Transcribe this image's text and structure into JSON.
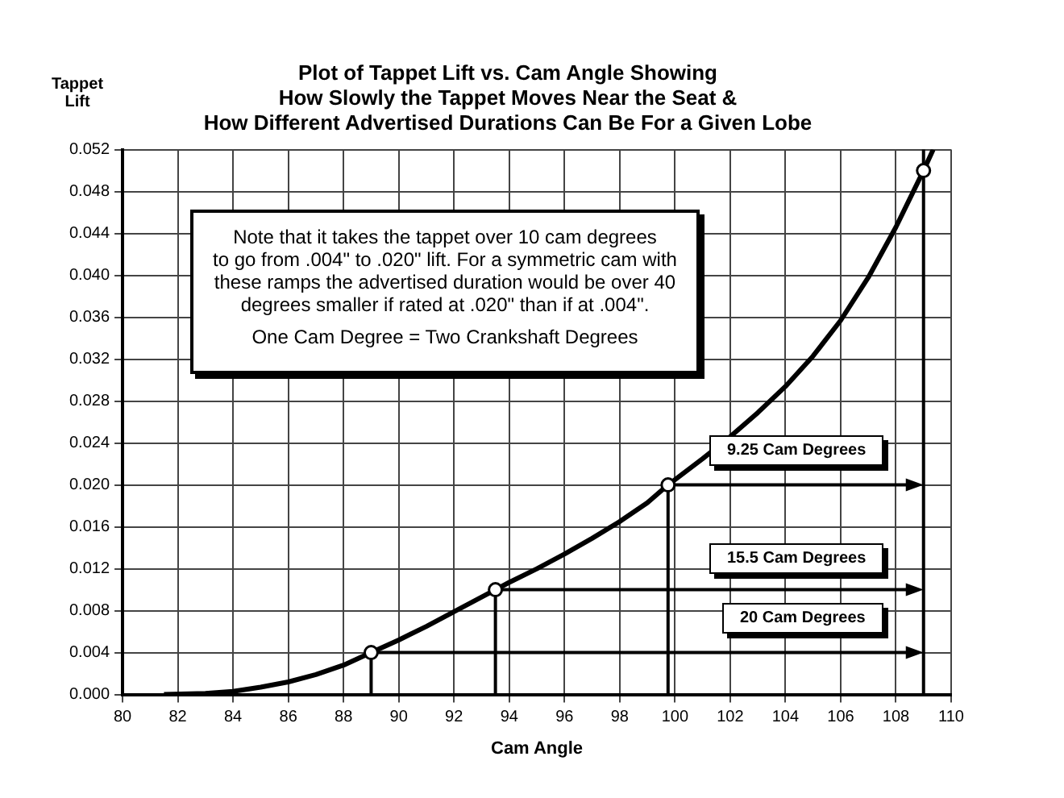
{
  "chart_data": {
    "type": "line",
    "title": "Plot of Tappet Lift vs. Cam Angle Showing",
    "subtitle": "How Slowly the Tappet Moves Near the Seat &\nHow Different Advertised Durations Can Be For a Given Lobe",
    "xlabel": "Cam Angle",
    "ylabel": "Tappet\nLift",
    "xlim": [
      80,
      110
    ],
    "xticks": [
      80,
      82,
      84,
      86,
      88,
      90,
      92,
      94,
      96,
      98,
      100,
      102,
      104,
      106,
      108,
      110
    ],
    "ylim": [
      0,
      0.052
    ],
    "yticks": [
      {
        "value": 0,
        "label": "0.000"
      },
      {
        "value": 0.004,
        "label": "0.004"
      },
      {
        "value": 0.008,
        "label": "0.008"
      },
      {
        "value": 0.012,
        "label": "0.012"
      },
      {
        "value": 0.016,
        "label": "0.016"
      },
      {
        "value": 0.02,
        "label": "0.020"
      },
      {
        "value": 0.024,
        "label": "0.024"
      },
      {
        "value": 0.028,
        "label": "0.028"
      },
      {
        "value": 0.032,
        "label": "0.032"
      },
      {
        "value": 0.036,
        "label": "0.036"
      },
      {
        "value": 0.04,
        "label": "0.040"
      },
      {
        "value": 0.044,
        "label": "0.044"
      },
      {
        "value": 0.048,
        "label": "0.048"
      },
      {
        "value": 0.052,
        "label": "0.052"
      }
    ],
    "grid": true,
    "legend": false,
    "ref_lines": [
      {
        "axis": "x",
        "value": 109,
        "color": "#000000"
      }
    ],
    "series": [
      {
        "color": "#000000",
        "x": [
          81.5,
          83,
          84,
          85,
          86,
          87,
          88,
          89,
          90,
          91,
          92,
          93.5,
          94,
          95,
          96,
          97,
          98,
          99,
          99.75,
          101,
          102,
          103,
          104,
          105,
          106,
          107,
          108,
          109,
          109.35
        ],
        "values": [
          0,
          0.0001,
          0.0003,
          0.0007,
          0.0012,
          0.0019,
          0.0028,
          0.004,
          0.0052,
          0.0065,
          0.0079,
          0.01,
          0.0107,
          0.012,
          0.0134,
          0.0149,
          0.0165,
          0.0183,
          0.02,
          0.0225,
          0.0246,
          0.0269,
          0.0294,
          0.0323,
          0.0357,
          0.0398,
          0.0446,
          0.05,
          0.052
        ],
        "marker": "none"
      },
      {
        "type": "scatter",
        "color": "#000000",
        "x": [
          89,
          93.5,
          99.75,
          109
        ],
        "values": [
          0.004,
          0.01,
          0.02,
          0.05
        ],
        "marker": "circle"
      }
    ],
    "annotations": [
      "Note that it takes the tappet over 10 cam degrees\nto go from .004\" to .020\" lift.  For a symmetric cam with\nthese ramps the advertised duration would be over 40\ndegrees smaller if rated at .020\" than if at .004\".",
      "One Cam Degree = Two Crankshaft Degrees",
      "9.25 Cam Degrees",
      "15.5 Cam Degrees",
      "20 Cam Degrees"
    ]
  }
}
